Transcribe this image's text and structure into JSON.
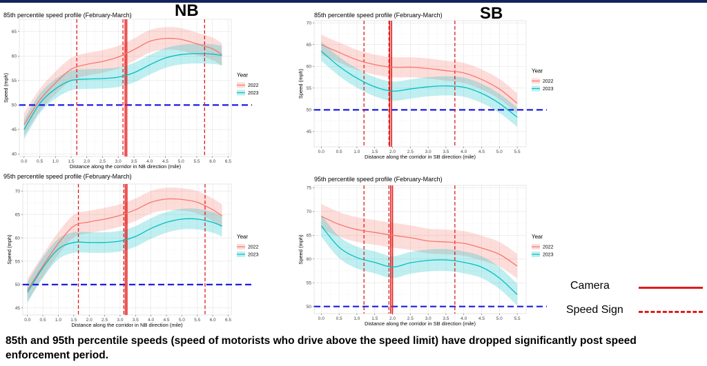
{
  "headings": {
    "nb": "NB",
    "sb": "SB"
  },
  "colors": {
    "c2022": "#F8766D",
    "c2023": "#00BFC4",
    "camera": "#E21A1A",
    "limit": "#1A1AE6",
    "topbar": "#13235b"
  },
  "legend_key": {
    "camera": "Camera",
    "speed_sign": "Speed Sign"
  },
  "caption": "85th and 95th percentile speeds (speed of motorists who drive above the speed limit) have dropped significantly post speed enforcement period.",
  "chart_data": [
    {
      "id": "nb85",
      "type": "line",
      "title": "85th percentile speed profile (February-March)",
      "xlabel": "Distance along the corridor in NB direction (mile)",
      "ylabel": "Speed (mph)",
      "xlim": [
        -0.15,
        6.6
      ],
      "ylim": [
        39.5,
        67.5
      ],
      "xticks": [
        "0.0",
        "0.5",
        "1.0",
        "1.5",
        "2.0",
        "2.5",
        "3.0",
        "3.5",
        "4.0",
        "4.5",
        "5.0",
        "5.5",
        "6.0",
        "6.5"
      ],
      "yticks": [
        "40",
        "45",
        "50",
        "55",
        "60",
        "65"
      ],
      "speed_limit": 50,
      "camera_x": [
        3.22,
        3.27
      ],
      "speed_sign_x": [
        1.68,
        3.15,
        5.75
      ],
      "legend_title": "Year",
      "series": [
        {
          "name": "2022",
          "x": [
            0,
            0.5,
            1,
            1.5,
            2,
            2.5,
            3,
            3.5,
            4,
            4.5,
            5,
            5.5,
            6,
            6.3
          ],
          "y": [
            46,
            51,
            54.5,
            57.3,
            58.3,
            58.9,
            59.8,
            61.3,
            63,
            63.6,
            63.4,
            62.5,
            61.5,
            60.3
          ],
          "band": 2.3
        },
        {
          "name": "2023",
          "x": [
            0,
            0.5,
            1,
            1.5,
            2,
            2.5,
            3,
            3.5,
            4,
            4.5,
            5,
            5.5,
            6,
            6.3
          ],
          "y": [
            45,
            50.3,
            53.3,
            55,
            55.3,
            55.4,
            55.7,
            56.6,
            58.2,
            59.6,
            60.3,
            60.5,
            60.4,
            60.1
          ],
          "band": 2.0
        }
      ]
    },
    {
      "id": "sb85",
      "type": "line",
      "title": "85th percentile speed profile (February-March)",
      "xlabel": "Distance along the corridor in SB direction (mile)",
      "ylabel": "Speed (mph)",
      "xlim": [
        -0.2,
        5.75
      ],
      "ylim": [
        41.5,
        70.5
      ],
      "xticks": [
        "0.0",
        "0.5",
        "1.0",
        "1.5",
        "2.0",
        "2.5",
        "3.0",
        "3.5",
        "4.0",
        "4.5",
        "5.0",
        "5.5"
      ],
      "yticks": [
        "45",
        "50",
        "55",
        "60",
        "65",
        "70"
      ],
      "speed_limit": 50,
      "camera_x": [
        1.92,
        1.97
      ],
      "speed_sign_x": [
        1.2,
        1.9,
        3.75
      ],
      "legend_title": "Year",
      "series": [
        {
          "name": "2022",
          "x": [
            0,
            0.5,
            1,
            1.5,
            2,
            2.5,
            3,
            3.5,
            4,
            4.5,
            5,
            5.5
          ],
          "y": [
            65,
            63.2,
            61.5,
            60.4,
            59.8,
            59.8,
            59.5,
            59,
            58.5,
            57,
            54.8,
            51.5
          ],
          "band": 2.3
        },
        {
          "name": "2023",
          "x": [
            0,
            0.5,
            1,
            1.5,
            2,
            2.5,
            3,
            3.5,
            4,
            4.5,
            5,
            5.5
          ],
          "y": [
            63.5,
            60,
            57.3,
            55.3,
            54.3,
            54.8,
            55.3,
            55.5,
            55.2,
            53.8,
            51.5,
            48.3
          ],
          "band": 2.2
        }
      ]
    },
    {
      "id": "nb95",
      "type": "line",
      "title": "95th percentile speed profile (February-March)",
      "xlabel": "Distance along the corridor in NB direction (mile)",
      "ylabel": "Speed (mph)",
      "xlim": [
        -0.15,
        6.6
      ],
      "ylim": [
        43.5,
        71.5
      ],
      "xticks": [
        "0.0",
        "0.5",
        "1.0",
        "1.5",
        "2.0",
        "2.5",
        "3.0",
        "3.5",
        "4.0",
        "4.5",
        "5.0",
        "5.5",
        "6.0",
        "6.5"
      ],
      "yticks": [
        "45",
        "50",
        "55",
        "60",
        "65",
        "70"
      ],
      "speed_limit": 50,
      "camera_x": [
        3.17,
        3.22
      ],
      "speed_sign_x": [
        1.65,
        3.12,
        5.75
      ],
      "legend_title": "Year",
      "series": [
        {
          "name": "2022",
          "x": [
            0,
            0.5,
            1,
            1.5,
            2,
            2.5,
            3,
            3.5,
            4,
            4.5,
            5,
            5.5,
            6,
            6.3
          ],
          "y": [
            48.8,
            54,
            58.8,
            62.5,
            63.4,
            64,
            64.8,
            66,
            67.6,
            68.3,
            68.2,
            67.6,
            66,
            64.7
          ],
          "band": 2.4
        },
        {
          "name": "2023",
          "x": [
            0,
            0.5,
            1,
            1.5,
            2,
            2.5,
            3,
            3.5,
            4,
            4.5,
            5,
            5.5,
            6,
            6.3
          ],
          "y": [
            48.3,
            53.6,
            57.6,
            59,
            59,
            59,
            59.3,
            60.3,
            62,
            63.3,
            64,
            64,
            63.3,
            62.5
          ],
          "band": 2.2
        }
      ]
    },
    {
      "id": "sb95",
      "type": "line",
      "title": "95th percentile speed profile (February-March)",
      "xlabel": "Distance along the corridor in SB direction (mile)",
      "ylabel": "Speed (mph)",
      "xlim": [
        -0.2,
        5.75
      ],
      "ylim": [
        48.5,
        75.5
      ],
      "xticks": [
        "0.0",
        "0.5",
        "1.0",
        "1.5",
        "2.0",
        "2.5",
        "3.0",
        "3.5",
        "4.0",
        "4.5",
        "5.0",
        "5.5"
      ],
      "yticks": [
        "50",
        "55",
        "60",
        "65",
        "70",
        "75"
      ],
      "speed_limit": 50,
      "camera_x": [
        1.95,
        2.0
      ],
      "speed_sign_x": [
        1.2,
        1.9,
        3.75
      ],
      "legend_title": "Year",
      "series": [
        {
          "name": "2022",
          "x": [
            0,
            0.5,
            1,
            1.5,
            2,
            2.5,
            3,
            3.5,
            4,
            4.5,
            5,
            5.5
          ],
          "y": [
            69,
            67.3,
            66.2,
            65.6,
            65,
            64.5,
            63.8,
            63.6,
            63.3,
            62.3,
            61,
            58.5
          ],
          "band": 2.6
        },
        {
          "name": "2023",
          "x": [
            0,
            0.5,
            1,
            1.5,
            2,
            2.5,
            3,
            3.5,
            4,
            4.5,
            5,
            5.5
          ],
          "y": [
            67,
            62.5,
            60.3,
            59.3,
            58.3,
            59.2,
            59.7,
            59.8,
            59.3,
            58.3,
            56,
            52.5
          ],
          "band": 2.3
        }
      ]
    }
  ]
}
